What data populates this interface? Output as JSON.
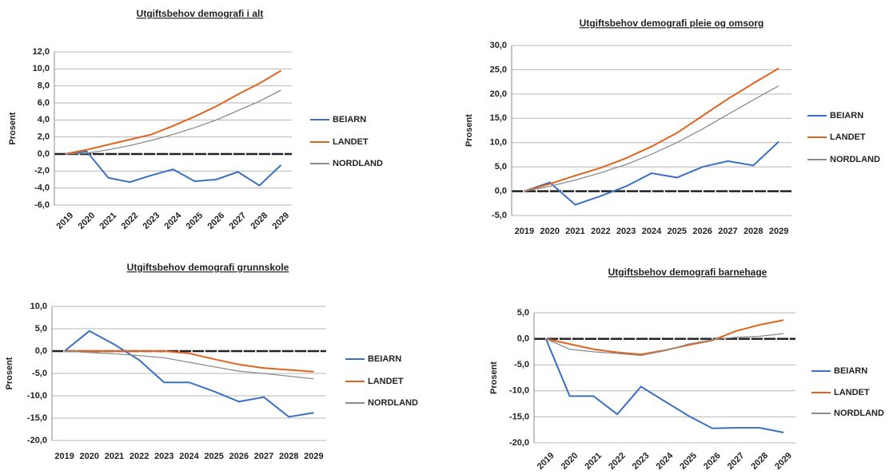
{
  "chart_data": [
    {
      "type": "line",
      "title": "Utgiftsbehov demografi i alt",
      "y_label": "Prosent",
      "categories": [
        "2019",
        "2020",
        "2021",
        "2022",
        "2023",
        "2024",
        "2025",
        "2026",
        "2027",
        "2028",
        "2029"
      ],
      "ylim": [
        -6,
        12
      ],
      "yticks": [
        {
          "value": -6,
          "label": "-6,0"
        },
        {
          "value": -4,
          "label": "-4,0"
        },
        {
          "value": -2,
          "label": "-2,0"
        },
        {
          "value": 0,
          "label": "0,0"
        },
        {
          "value": 2,
          "label": "2,0"
        },
        {
          "value": 4,
          "label": "4,0"
        },
        {
          "value": 6,
          "label": "6,0"
        },
        {
          "value": 8,
          "label": "8,0"
        },
        {
          "value": 10,
          "label": "10,0"
        },
        {
          "value": 12,
          "label": "12,0"
        }
      ],
      "grid": true,
      "series": [
        {
          "name": "BEIARN",
          "color": "#3a6fc4",
          "values": [
            0,
            0.3,
            -2.8,
            -3.3,
            -2.5,
            -1.8,
            -3.2,
            -3.0,
            -2.1,
            -3.7,
            -1.3
          ]
        },
        {
          "name": "LANDET",
          "color": "#e0641e",
          "values": [
            0,
            0.5,
            1.1,
            1.7,
            2.3,
            3.3,
            4.4,
            5.6,
            7.0,
            8.3,
            9.8
          ]
        },
        {
          "name": "NORDLAND",
          "color": "#8c8c8c",
          "values": [
            0,
            0.1,
            0.5,
            1.0,
            1.6,
            2.3,
            3.1,
            4.0,
            5.1,
            6.2,
            7.5
          ]
        }
      ]
    },
    {
      "type": "line",
      "title": "Utgiftsbehov demografi pleie og omsorg",
      "y_label": "Prosent",
      "categories": [
        "2019",
        "2020",
        "2021",
        "2022",
        "2023",
        "2024",
        "2025",
        "2026",
        "2027",
        "2028",
        "2029"
      ],
      "ylim": [
        -5,
        30
      ],
      "yticks": [
        {
          "value": -5,
          "label": "-5,0"
        },
        {
          "value": 0,
          "label": "0,0"
        },
        {
          "value": 5,
          "label": "5,0"
        },
        {
          "value": 10,
          "label": "10,0"
        },
        {
          "value": 15,
          "label": "15,0"
        },
        {
          "value": 20,
          "label": "20,0"
        },
        {
          "value": 25,
          "label": "25,0"
        },
        {
          "value": 30,
          "label": "30,0"
        }
      ],
      "grid": true,
      "series": [
        {
          "name": "BEIARN",
          "color": "#3a6fc4",
          "values": [
            0,
            1.8,
            -2.8,
            -1.0,
            1.0,
            3.7,
            2.8,
            5.0,
            6.2,
            5.3,
            10.2
          ]
        },
        {
          "name": "LANDET",
          "color": "#e0641e",
          "values": [
            0,
            1.5,
            3.2,
            4.8,
            6.8,
            9.2,
            12.0,
            15.5,
            19.0,
            22.2,
            25.3
          ]
        },
        {
          "name": "NORDLAND",
          "color": "#8c8c8c",
          "values": [
            0,
            1.0,
            2.3,
            3.8,
            5.5,
            7.6,
            10.0,
            12.8,
            15.8,
            18.8,
            21.7
          ]
        }
      ]
    },
    {
      "type": "line",
      "title": "Utgiftsbehov demografi grunnskole",
      "y_label": "Prosent",
      "categories": [
        "2019",
        "2020",
        "2021",
        "2022",
        "2023",
        "2024",
        "2025",
        "2026",
        "2027",
        "2028",
        "2029"
      ],
      "ylim": [
        -20,
        10
      ],
      "yticks": [
        {
          "value": -20,
          "label": "-20,0"
        },
        {
          "value": -15,
          "label": "-15,0"
        },
        {
          "value": -10,
          "label": "-10,0"
        },
        {
          "value": -5,
          "label": "-5,0"
        },
        {
          "value": 0,
          "label": "0,0"
        },
        {
          "value": 5,
          "label": "5,0"
        },
        {
          "value": 10,
          "label": "10,0"
        }
      ],
      "grid": true,
      "series": [
        {
          "name": "BEIARN",
          "color": "#3a6fc4",
          "values": [
            0,
            4.5,
            1.5,
            -2.0,
            -7.0,
            -7.0,
            -9.0,
            -11.3,
            -10.3,
            -14.7,
            -13.8
          ]
        },
        {
          "name": "LANDET",
          "color": "#e0641e",
          "values": [
            0,
            0,
            0,
            0,
            0,
            -0.5,
            -1.8,
            -3.0,
            -3.8,
            -4.2,
            -4.6
          ]
        },
        {
          "name": "NORDLAND",
          "color": "#8c8c8c",
          "values": [
            0,
            -0.3,
            -0.6,
            -1.0,
            -1.5,
            -2.5,
            -3.5,
            -4.5,
            -5.0,
            -5.6,
            -6.2
          ]
        }
      ]
    },
    {
      "type": "line",
      "title": "Utgiftsbehov demografi barnehage",
      "y_label": "Prosent",
      "categories": [
        "2019",
        "2020",
        "2021",
        "2022",
        "2023",
        "2024",
        "2025",
        "2026",
        "2027",
        "2028",
        "2029"
      ],
      "ylim": [
        -20,
        5
      ],
      "yticks": [
        {
          "value": -20,
          "label": "-20,0"
        },
        {
          "value": -15,
          "label": "-15,0"
        },
        {
          "value": -10,
          "label": "-10,0"
        },
        {
          "value": -5,
          "label": "-5,0"
        },
        {
          "value": 0,
          "label": "0,0"
        },
        {
          "value": 5,
          "label": "5,0"
        }
      ],
      "grid": true,
      "series": [
        {
          "name": "BEIARN",
          "color": "#3a6fc4",
          "values": [
            0,
            -11.0,
            -11.0,
            -14.5,
            -9.2,
            -12.0,
            -14.8,
            -17.2,
            -17.1,
            -17.1,
            -18.0
          ]
        },
        {
          "name": "LANDET",
          "color": "#e0641e",
          "values": [
            0,
            -1.0,
            -2.0,
            -2.6,
            -3.0,
            -2.2,
            -1.2,
            -0.3,
            1.5,
            2.7,
            3.6
          ]
        },
        {
          "name": "NORDLAND",
          "color": "#8c8c8c",
          "values": [
            0,
            -2.0,
            -2.5,
            -2.8,
            -3.2,
            -2.3,
            -1.0,
            -0.2,
            0.3,
            0.5,
            1.0
          ]
        }
      ]
    }
  ]
}
